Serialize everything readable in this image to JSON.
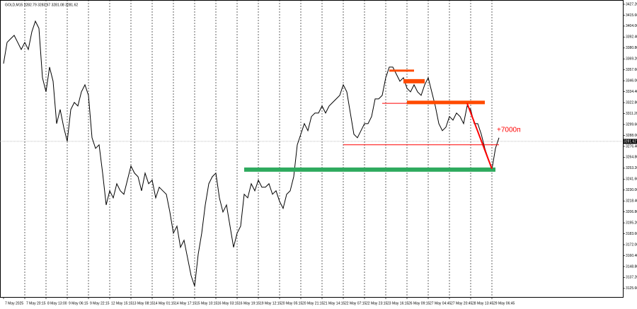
{
  "chart_data": {
    "type": "line",
    "title": "GOLD,M15  3282.79 3283.67 3281.08 3281.62",
    "annotation": "+7000п",
    "color": "#000000",
    "categories": [
      "7 May 2025",
      null,
      null,
      null,
      null,
      null,
      "7 May 20:15",
      null,
      null,
      null,
      null,
      null,
      "8 May 13:00",
      null,
      null,
      null,
      null,
      null,
      "9 May 06:15",
      null,
      null,
      null,
      null,
      null,
      "9 May 22:15",
      null,
      null,
      null,
      null,
      null,
      "12 May 15:15",
      null,
      null,
      null,
      null,
      null,
      "13 May 08:15",
      null,
      null,
      null,
      null,
      null,
      "14 May 01:15",
      null,
      null,
      null,
      null,
      null,
      "14 May 17:15",
      null,
      null,
      null,
      null,
      null,
      "15 May 10:15",
      null,
      null,
      null,
      null,
      null,
      "16 May 03:15",
      null,
      null,
      null,
      null,
      null,
      "16 May 19:15",
      null,
      null,
      null,
      null,
      null,
      "19 May 12:15",
      null,
      null,
      null,
      null,
      null,
      "20 May 05:15",
      null,
      null,
      null,
      null,
      null,
      "20 May 21:15",
      null,
      null,
      null,
      null,
      null,
      "21 May 14:15",
      null,
      null,
      null,
      null,
      null,
      "22 May 07:15",
      null,
      null,
      null,
      null,
      null,
      "22 May 23:15",
      null,
      null,
      null,
      null,
      null,
      "23 May 16:15",
      null,
      null,
      null,
      null,
      null,
      "26 May 09:15",
      null,
      null,
      null,
      null,
      null,
      "27 May 04:45",
      null,
      null,
      null,
      null,
      null,
      "27 May 20:45",
      null,
      null,
      null,
      null,
      null,
      "28 May 13:45",
      null,
      null,
      null,
      null,
      null,
      "29 May 06:45",
      null,
      null
    ],
    "values": [
      3364.2,
      3386.7,
      3390.5,
      3394.2,
      3386.7,
      3379.2,
      3386.7,
      3379.2,
      3398,
      3409.2,
      3401.7,
      3349.2,
      3334.2,
      3360.5,
      3345.5,
      3300.5,
      3315.5,
      3296.7,
      3281.7,
      3315.5,
      3323,
      3319.2,
      3334.2,
      3341.7,
      3330.5,
      3285.5,
      3274.2,
      3278,
      3248,
      3214.2,
      3229.2,
      3221.7,
      3236.7,
      3229.2,
      3225.5,
      3240.5,
      3255.5,
      3248,
      3244.2,
      3229.2,
      3248,
      3236.7,
      3240.5,
      3221.7,
      3233,
      3229.2,
      3225.5,
      3206.7,
      3184.2,
      3191.7,
      3169.2,
      3176.7,
      3158,
      3139.2,
      3128,
      3161.7,
      3184.2,
      3214.2,
      3236.7,
      3244.2,
      3248,
      3221.7,
      3206.7,
      3214.2,
      3191.7,
      3169.2,
      3184.2,
      3191.7,
      3225.5,
      3221.7,
      3236.7,
      3229.2,
      3240.5,
      3233,
      3233,
      3236.7,
      3225.5,
      3229.2,
      3218,
      3210.5,
      3225.5,
      3229.2,
      3244.2,
      3278,
      3289.2,
      3300.5,
      3293,
      3308,
      3311.7,
      3311.7,
      3319.2,
      3311.7,
      3319.2,
      3323,
      3326.7,
      3330.5,
      3341.7,
      3334.2,
      3311.7,
      3289.2,
      3285.5,
      3293,
      3300.5,
      3300.5,
      3308,
      3326.7,
      3326.7,
      3330.5,
      3349.2,
      3360.5,
      3360.5,
      3353,
      3345.5,
      3349.2,
      3338,
      3334.2,
      3341.7,
      3334.2,
      3330.5,
      3341.7,
      3349.2,
      3334.2,
      3319.2,
      3300.5,
      3293,
      3296.7,
      3308,
      3304.2,
      3311.7,
      3308,
      3300.5,
      3319.2,
      3315.5,
      3300.5,
      3300.5,
      3289.2,
      3274.2,
      3263,
      3251.7,
      3274.2,
      3285.5
    ],
    "last_price": {
      "value": 3281.62,
      "label": "3281.62"
    },
    "levels": [
      {
        "color": "#2eaa5e",
        "value": 3251.7,
        "from": 68,
        "to": 139,
        "width": 6
      },
      {
        "color": "#ff0000",
        "value": 3278,
        "from": 96,
        "to": 140,
        "width": 1
      },
      {
        "color": "#ff0000",
        "value": 3322,
        "from": 107,
        "to": 136,
        "width": 1
      },
      {
        "color": "#ff4a00",
        "value": 3356.7,
        "from": 109,
        "to": 116,
        "width": 3
      },
      {
        "color": "#ff4a00",
        "value": 3345.5,
        "from": 113,
        "to": 119,
        "width": 6
      },
      {
        "color": "#ff4a00",
        "value": 3323,
        "from": 114,
        "to": 136,
        "width": 5
      }
    ],
    "trend": {
      "color": "#ff0000",
      "from": 131,
      "to": 138,
      "values": [
        3322,
        3252.5
      ]
    },
    "ylim": [
      3116.5,
      3431.7
    ],
    "yticks": [
      {
        "value": 3427.2,
        "label": "3427.20"
      },
      {
        "value": 3415.6,
        "label": "3415.60"
      },
      {
        "value": 3404,
        "label": "3404.00"
      },
      {
        "value": 3392.4,
        "label": "3392.40"
      },
      {
        "value": 3380.8,
        "label": "3380.80"
      },
      {
        "value": 3369.2,
        "label": "3369.20"
      },
      {
        "value": 3357.6,
        "label": "3357.60"
      },
      {
        "value": 3346,
        "label": "3346.00"
      },
      {
        "value": 3334.4,
        "label": "3334.40"
      },
      {
        "value": 3322.8,
        "label": "3322.80"
      },
      {
        "value": 3311.2,
        "label": "3311.20"
      },
      {
        "value": 3299.6,
        "label": "3299.60"
      },
      {
        "value": 3288,
        "label": "3288.00"
      },
      {
        "value": 3276.4,
        "label": "3276.40"
      },
      {
        "value": 3264.8,
        "label": "3264.80"
      },
      {
        "value": 3253.2,
        "label": "3253.20"
      },
      {
        "value": 3241.6,
        "label": "3241.60"
      },
      {
        "value": 3230,
        "label": "3230.00"
      },
      {
        "value": 3218.4,
        "label": "3218.40"
      },
      {
        "value": 3206.8,
        "label": "3206.80"
      },
      {
        "value": 3195.2,
        "label": "3195.20"
      },
      {
        "value": 3183.6,
        "label": "3183.60"
      },
      {
        "value": 3172,
        "label": "3172.00"
      },
      {
        "value": 3160.4,
        "label": "3160.40"
      },
      {
        "value": 3148.8,
        "label": "3148.80"
      },
      {
        "value": 3137.2,
        "label": "3137.20"
      },
      {
        "value": 3125.6,
        "label": "3125.60"
      }
    ],
    "grid": true
  }
}
